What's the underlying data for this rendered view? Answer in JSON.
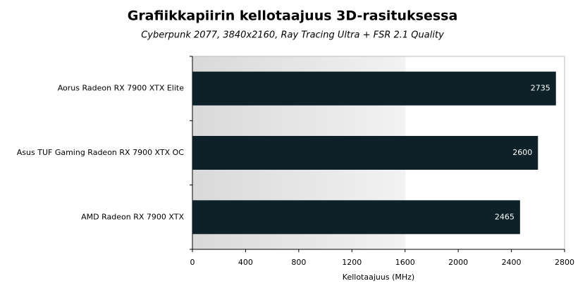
{
  "chart_data": {
    "type": "bar",
    "orientation": "horizontal",
    "title": "Grafiikkapiirin kellotaajuus 3D-rasituksessa",
    "subtitle": "Cyberpunk 2077, 3840x2160, Ray Tracing Ultra + FSR 2.1 Quality",
    "x_label": "Kellotaajuus (MHz)",
    "categories": [
      "Aorus Radeon RX 7900 XTX Elite",
      "Asus TUF Gaming Radeon RX 7900 XTX OC",
      "AMD Radeon RX 7900 XTX"
    ],
    "values": [
      2735,
      2600,
      2465
    ],
    "color": "#0e2129",
    "xlim": [
      0,
      2800
    ],
    "xticks": [
      0,
      400,
      800,
      1200,
      1600,
      2000,
      2400,
      2800
    ]
  }
}
